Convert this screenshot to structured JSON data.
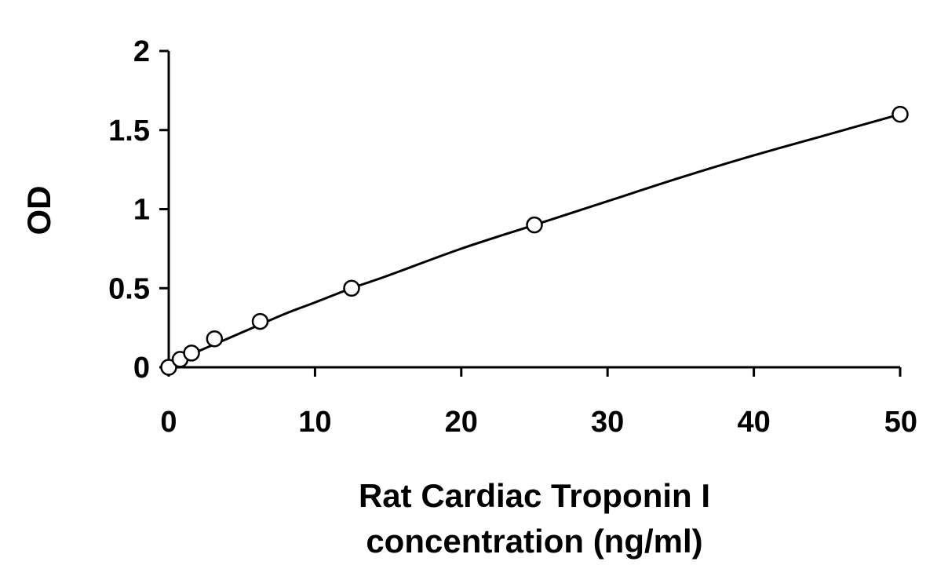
{
  "chart_data": {
    "type": "scatter",
    "title": "",
    "xlabel_lines": [
      "Rat Cardiac Troponin I",
      "concentration (ng/ml)"
    ],
    "ylabel": "OD",
    "xlim": [
      0,
      50
    ],
    "ylim": [
      0,
      2
    ],
    "x_ticks": [
      0,
      10,
      20,
      30,
      40,
      50
    ],
    "x_tick_labels": [
      "0",
      "10",
      "20",
      "30",
      "40",
      "50"
    ],
    "y_ticks": [
      0,
      0.5,
      1,
      1.5,
      2
    ],
    "y_tick_labels": [
      "0",
      "0.5",
      "1",
      "1.5",
      "2"
    ],
    "grid": false,
    "legend": "none",
    "series": [
      {
        "marker": "open-circle",
        "x": [
          0,
          0.78,
          1.56,
          3.13,
          6.25,
          12.5,
          25,
          50
        ],
        "y": [
          0.0,
          0.05,
          0.09,
          0.18,
          0.29,
          0.5,
          0.9,
          1.6
        ]
      }
    ],
    "fit_curve": {
      "style": "solid",
      "x": [
        0,
        2,
        4,
        6,
        8,
        10,
        12.5,
        15,
        20,
        25,
        30,
        35,
        40,
        45,
        50
      ],
      "y": [
        0.01,
        0.1,
        0.18,
        0.26,
        0.34,
        0.41,
        0.5,
        0.58,
        0.75,
        0.9,
        1.05,
        1.2,
        1.34,
        1.47,
        1.6
      ]
    },
    "colors": {
      "axis": "#000000",
      "marker_stroke": "#000000",
      "marker_fill": "#ffffff",
      "curve": "#000000"
    }
  }
}
